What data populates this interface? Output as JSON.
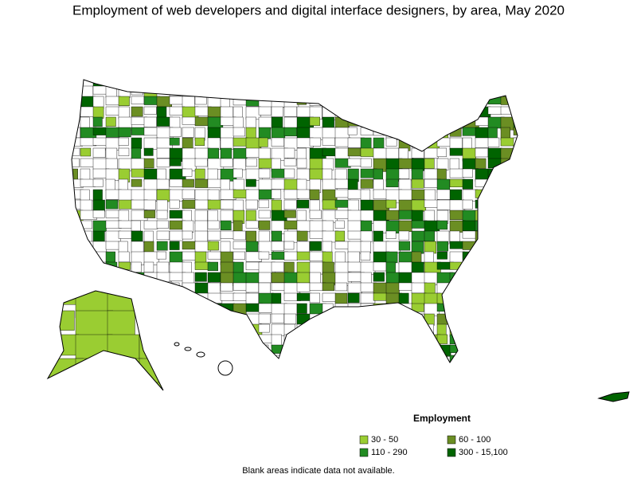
{
  "title": "Employment of web developers and digital interface designers, by area, May 2020",
  "legend": {
    "title": "Employment",
    "items": [
      {
        "label": "30 - 50",
        "color": "#9acd32"
      },
      {
        "label": "60 - 100",
        "color": "#6b8e23"
      },
      {
        "label": "110 - 290",
        "color": "#228b22"
      },
      {
        "label": "300 - 15,100",
        "color": "#006400"
      }
    ]
  },
  "footnote": "Blank areas indicate data not available."
}
